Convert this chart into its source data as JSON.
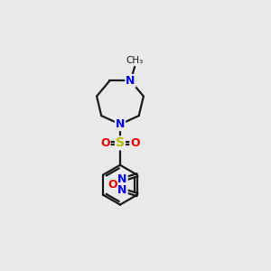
{
  "background_color": "#e9e9e9",
  "bond_color": "#1a1a1a",
  "bond_width": 1.6,
  "atom_colors": {
    "N": "#0000ee",
    "O": "#ee0000",
    "S": "#bbbb00",
    "C": "#1a1a1a"
  },
  "figsize": [
    3.0,
    3.0
  ],
  "dpi": 100,
  "xlim": [
    0,
    10
  ],
  "ylim": [
    0,
    10
  ]
}
